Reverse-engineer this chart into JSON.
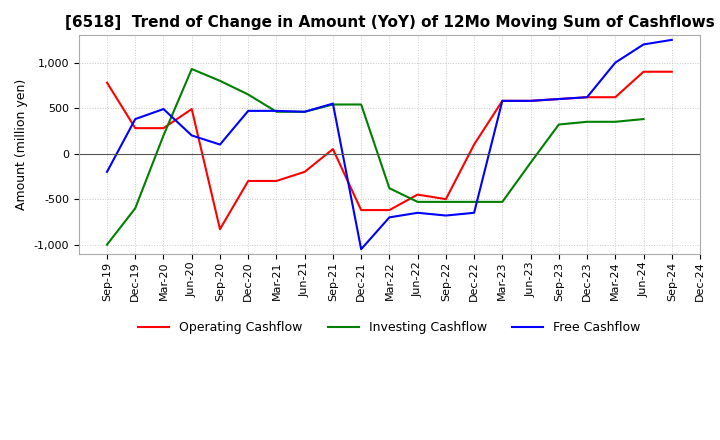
{
  "title": "[6518]  Trend of Change in Amount (YoY) of 12Mo Moving Sum of Cashflows",
  "ylabel": "Amount (million yen)",
  "x_labels": [
    "Sep-19",
    "Dec-19",
    "Mar-20",
    "Jun-20",
    "Sep-20",
    "Dec-20",
    "Mar-21",
    "Jun-21",
    "Sep-21",
    "Dec-21",
    "Mar-22",
    "Jun-22",
    "Sep-22",
    "Dec-22",
    "Mar-23",
    "Jun-23",
    "Sep-23",
    "Dec-23",
    "Mar-24",
    "Jun-24",
    "Sep-24",
    "Dec-24"
  ],
  "operating": [
    780,
    280,
    280,
    490,
    -830,
    -300,
    -300,
    -200,
    50,
    -620,
    -620,
    -450,
    -500,
    100,
    580,
    580,
    600,
    620,
    620,
    900,
    900,
    null
  ],
  "investing": [
    -1000,
    -600,
    200,
    930,
    800,
    650,
    460,
    460,
    540,
    540,
    -380,
    -530,
    -530,
    -530,
    -530,
    -100,
    320,
    350,
    350,
    380,
    null,
    null
  ],
  "free": [
    -200,
    380,
    490,
    200,
    100,
    470,
    470,
    460,
    550,
    -1050,
    -700,
    -650,
    -680,
    -650,
    580,
    580,
    600,
    620,
    1000,
    1200,
    1250,
    null
  ],
  "ylim": [
    -1100,
    1300
  ],
  "yticks": [
    -1000,
    -500,
    0,
    500,
    1000
  ],
  "operating_color": "#ff0000",
  "investing_color": "#008000",
  "free_color": "#0000ff",
  "grid_color": "#c8c8c8",
  "title_fontsize": 11,
  "axis_fontsize": 9,
  "tick_fontsize": 8
}
